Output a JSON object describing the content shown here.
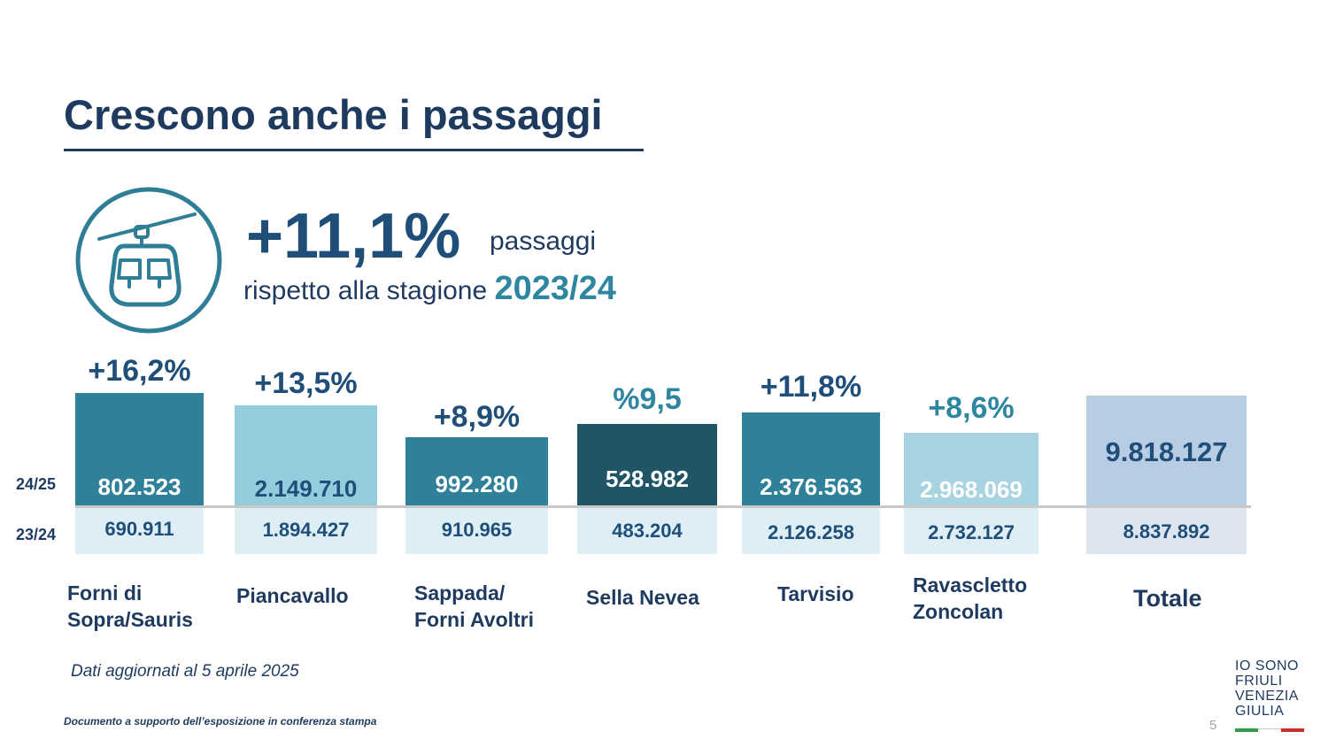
{
  "header": {
    "title": "Crescono anche i passaggi"
  },
  "highlight": {
    "icon": "cable-car-icon",
    "percent": "+11,1%",
    "label_right": "passaggi",
    "label_prefix": "rispetto alla stagione ",
    "season": "2023/24"
  },
  "row_labels": {
    "current": "24/25",
    "previous": "23/24"
  },
  "chart_data": {
    "type": "bar",
    "categories": [
      "Forni di\nSopra/Sauris",
      "Piancavallo",
      "Sappada/\nForni Avoltri",
      "Sella Nevea",
      "Tarvisio",
      "Ravascletto\nZoncolan",
      "Totale"
    ],
    "series": [
      {
        "name": "24/25",
        "values": [
          802523,
          2149710,
          992280,
          528982,
          2376563,
          2968069,
          9818127
        ],
        "labels": [
          "802.523",
          "2.149.710",
          "992.280",
          "528.982",
          "2.376.563",
          "2.968.069",
          "9.818.127"
        ]
      },
      {
        "name": "23/24",
        "values": [
          690911,
          1894427,
          910965,
          483204,
          2126258,
          2732127,
          8837892
        ],
        "labels": [
          "690.911",
          "1.894.427",
          "910.965",
          "483.204",
          "2.126.258",
          "2.732.127",
          "8.837.892"
        ]
      }
    ],
    "growth_labels": [
      "+16,2%",
      "+13,5%",
      "+8,9%",
      "%9,5",
      "+11,8%",
      "+8,6%",
      ""
    ],
    "bar_colors": [
      "#2e8199",
      "#93cddd",
      "#2e8199",
      "#1f5566",
      "#2e8199",
      "#a8d4e1",
      "#b8cce4"
    ],
    "previous_bar_colors": [
      "#ddeff5",
      "#ddeff5",
      "#ddeff5",
      "#ddeff5",
      "#ddeff5",
      "#ddeff5",
      "#dde6f0"
    ],
    "current_label_colors": [
      "#ffffff",
      "#1f4e79",
      "#ffffff",
      "#ffffff",
      "#ffffff",
      "#ffffff",
      "#1f4e79"
    ]
  },
  "note": "Dati aggiornati al 5 aprile 2025",
  "footer": {
    "text": "Documento a supporto dell’esposizione in conferenza stampa",
    "page": "5"
  },
  "logo": {
    "lines": [
      "IO SONO",
      "FRIULI",
      "VENEZIA",
      "GIULIA"
    ],
    "flag_colors": [
      "#2e9e4a",
      "#ffffff",
      "#c8302c"
    ]
  }
}
